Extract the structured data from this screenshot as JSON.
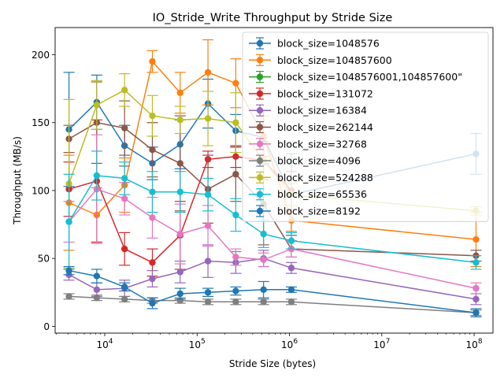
{
  "chart_data": {
    "type": "line",
    "title": "IO_Stride_Write Throughput by Stride Size",
    "xlabel": "Stride Size (bytes)",
    "ylabel": "Throughput (MB/s)",
    "x_scale": "log",
    "xlim": [
      2900,
      160000000
    ],
    "ylim": [
      -5,
      220
    ],
    "x_ticks": [
      {
        "value": 10000,
        "label": "10⁴",
        "base": "10",
        "exp": "4"
      },
      {
        "value": 100000,
        "label": "10⁵",
        "base": "10",
        "exp": "5"
      },
      {
        "value": 1000000,
        "label": "10⁶",
        "base": "10",
        "exp": "6"
      },
      {
        "value": 10000000,
        "label": "10⁷",
        "base": "10",
        "exp": "7"
      },
      {
        "value": 100000000,
        "label": "10⁸",
        "base": "10",
        "exp": "8"
      }
    ],
    "y_ticks": [
      {
        "value": 0,
        "label": "0"
      },
      {
        "value": 50,
        "label": "50"
      },
      {
        "value": 100,
        "label": "100"
      },
      {
        "value": 150,
        "label": "150"
      },
      {
        "value": 200,
        "label": "200"
      }
    ],
    "grid": false,
    "legend_position": "top-right",
    "series": [
      {
        "name": "block_size=1048576",
        "color": "#1f77b4",
        "x": [
          4096,
          8192,
          16384,
          32768,
          65536,
          131072,
          262144,
          524288,
          1048576,
          104857600
        ],
        "y": [
          145,
          165,
          133,
          120,
          134,
          164,
          144,
          139,
          97,
          127
        ],
        "err": [
          42,
          20,
          15,
          12,
          18,
          18,
          12,
          20,
          30,
          15
        ]
      },
      {
        "name": "block_size=104857600",
        "color": "#ff7f0e",
        "x": [
          4096,
          8192,
          16384,
          32768,
          65536,
          131072,
          262144,
          524288,
          1048576,
          104857600
        ],
        "y": [
          91,
          82,
          104,
          195,
          172,
          187,
          179,
          140,
          78,
          64
        ],
        "err": [
          35,
          20,
          20,
          8,
          15,
          24,
          18,
          15,
          8,
          20
        ]
      },
      {
        "name": "block_size=1048576001,104857600\"",
        "color": "#2ca02c",
        "x": [],
        "y": [],
        "err": []
      },
      {
        "name": "block_size=131072",
        "color": "#d62728",
        "x": [
          4096,
          8192,
          16384,
          32768,
          65536,
          131072,
          262144,
          524288,
          1048576
        ],
        "y": [
          101,
          107,
          57,
          47,
          67,
          123,
          125,
          122,
          100
        ],
        "err": [
          20,
          45,
          12,
          10,
          25,
          6,
          8,
          14,
          14
        ]
      },
      {
        "name": "block_size=16384",
        "color": "#9467bd",
        "x": [
          4096,
          8192,
          16384,
          32768,
          65536,
          131072,
          262144,
          524288,
          1048576,
          104857600
        ],
        "y": [
          38,
          27,
          28,
          35,
          40,
          48,
          47,
          50,
          43,
          20
        ],
        "err": [
          4,
          5,
          6,
          6,
          8,
          12,
          8,
          6,
          4,
          4
        ]
      },
      {
        "name": "block_size=262144",
        "color": "#8c564b",
        "x": [
          4096,
          8192,
          16384,
          32768,
          65536,
          131072,
          262144,
          524288,
          1048576,
          104857600
        ],
        "y": [
          138,
          150,
          146,
          130,
          120,
          101,
          112,
          90,
          57,
          52
        ],
        "err": [
          10,
          30,
          20,
          20,
          35,
          25,
          20,
          30,
          6,
          4
        ]
      },
      {
        "name": "block_size=32768",
        "color": "#e377c2",
        "x": [
          4096,
          8192,
          16384,
          32768,
          65536,
          131072,
          262144,
          524288,
          1048576,
          104857600
        ],
        "y": [
          77,
          101,
          94,
          80,
          68,
          74,
          51,
          49,
          57,
          28
        ],
        "err": [
          15,
          40,
          12,
          15,
          22,
          15,
          6,
          5,
          6,
          4
        ]
      },
      {
        "name": "block_size=4096",
        "color": "#7f7f7f",
        "x": [
          4096,
          8192,
          16384,
          32768,
          65536,
          131072,
          262144,
          524288,
          1048576,
          104857600
        ],
        "y": [
          22,
          21,
          20,
          19,
          19,
          18,
          18,
          18,
          18,
          10
        ],
        "err": [
          2,
          2,
          2,
          2,
          2,
          2,
          2,
          2,
          2,
          2
        ]
      },
      {
        "name": "block_size=524288",
        "color": "#bcbd22",
        "x": [
          4096,
          8192,
          16384,
          32768,
          65536,
          131072,
          262144,
          524288,
          1048576,
          104857600
        ],
        "y": [
          105,
          163,
          174,
          155,
          152,
          153,
          150,
          122,
          97,
          85
        ],
        "err": [
          62,
          18,
          12,
          15,
          10,
          20,
          22,
          12,
          8,
          3
        ]
      },
      {
        "name": "block_size=65536",
        "color": "#17becf",
        "x": [
          4096,
          8192,
          16384,
          32768,
          65536,
          131072,
          262144,
          524288,
          1048576,
          104857600
        ],
        "y": [
          77,
          111,
          109,
          99,
          99,
          97,
          82,
          68,
          63,
          47
        ],
        "err": [
          35,
          18,
          12,
          15,
          15,
          12,
          12,
          10,
          6,
          5
        ]
      },
      {
        "name": "block_size=8192",
        "color": "#1f77b4",
        "x": [
          4096,
          8192,
          16384,
          32768,
          65536,
          131072,
          262144,
          524288,
          1048576,
          104857600
        ],
        "y": [
          41,
          37,
          29,
          17,
          24,
          25,
          26,
          27,
          27,
          10
        ],
        "err": [
          3,
          5,
          3,
          4,
          4,
          3,
          3,
          6,
          2,
          3
        ]
      }
    ]
  }
}
